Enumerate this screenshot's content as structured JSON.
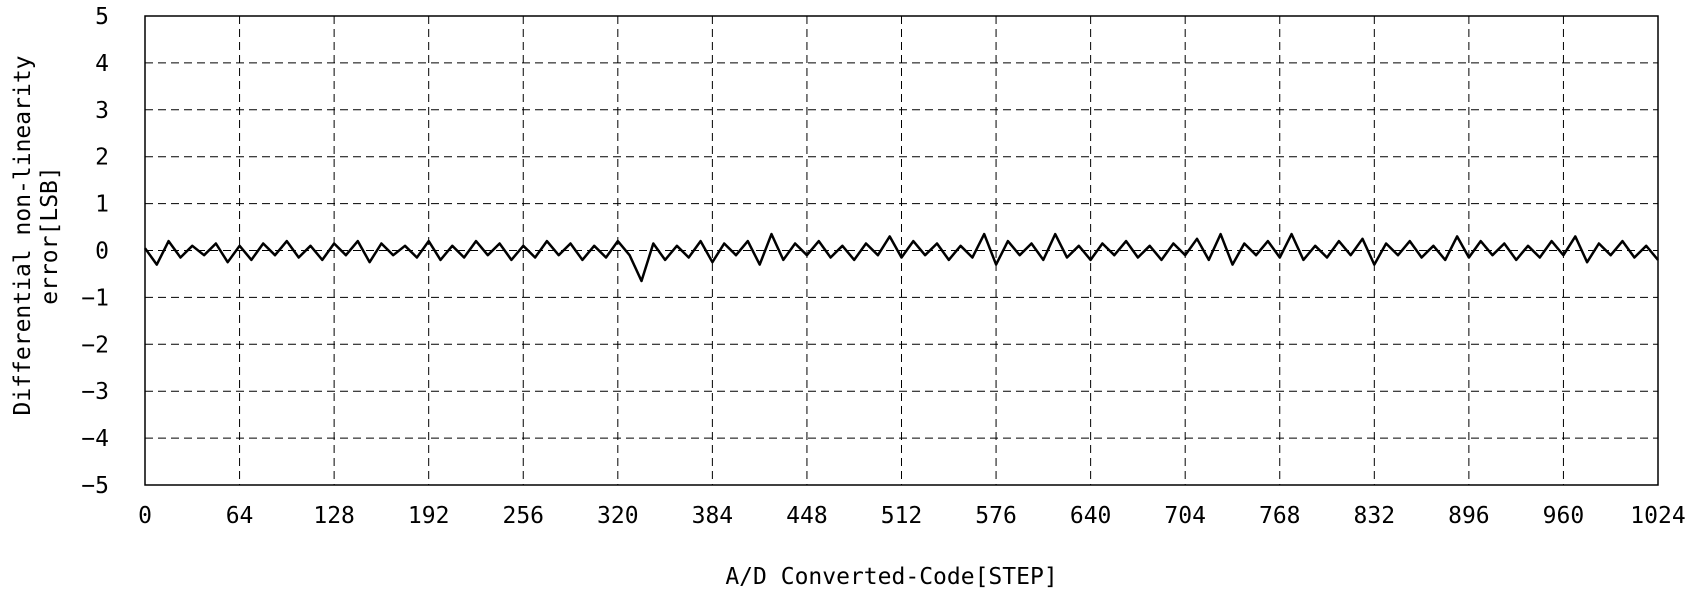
{
  "chart_data": {
    "type": "line",
    "title": "",
    "xlabel": "A/D Converted-Code[STEP]",
    "ylabel_lines": [
      "Differential non-linearity",
      "error[LSB]"
    ],
    "xlim": [
      0,
      1024
    ],
    "ylim": [
      -5,
      5
    ],
    "x_ticks": [
      0,
      64,
      128,
      192,
      256,
      320,
      384,
      448,
      512,
      576,
      640,
      704,
      768,
      832,
      896,
      960,
      1024
    ],
    "y_ticks": [
      5,
      4,
      3,
      2,
      1,
      0,
      -1,
      -2,
      -3,
      -4,
      -5
    ],
    "y_tick_labels": [
      "5",
      "4",
      "3",
      "2",
      "1",
      "0",
      "−1",
      "−2",
      "−3",
      "−4",
      "−5"
    ],
    "grid": true,
    "series": [
      {
        "color": "#000000",
        "x": [
          0,
          8,
          16,
          24,
          32,
          40,
          48,
          56,
          64,
          72,
          80,
          88,
          96,
          104,
          112,
          120,
          128,
          136,
          144,
          152,
          160,
          168,
          176,
          184,
          192,
          200,
          208,
          216,
          224,
          232,
          240,
          248,
          256,
          264,
          272,
          280,
          288,
          296,
          304,
          312,
          320,
          328,
          336,
          344,
          352,
          360,
          368,
          376,
          384,
          392,
          400,
          408,
          416,
          424,
          432,
          440,
          448,
          456,
          464,
          472,
          480,
          488,
          496,
          504,
          512,
          520,
          528,
          536,
          544,
          552,
          560,
          568,
          576,
          584,
          592,
          600,
          608,
          616,
          624,
          632,
          640,
          648,
          656,
          664,
          672,
          680,
          688,
          696,
          704,
          712,
          720,
          728,
          736,
          744,
          752,
          760,
          768,
          776,
          784,
          792,
          800,
          808,
          816,
          824,
          832,
          840,
          848,
          856,
          864,
          872,
          880,
          888,
          896,
          904,
          912,
          920,
          928,
          936,
          944,
          952,
          960,
          968,
          976,
          984,
          992,
          1000,
          1008,
          1016,
          1024
        ],
        "values": [
          0.05,
          -0.3,
          0.2,
          -0.15,
          0.1,
          -0.1,
          0.15,
          -0.25,
          0.1,
          -0.2,
          0.15,
          -0.1,
          0.2,
          -0.15,
          0.1,
          -0.2,
          0.15,
          -0.1,
          0.2,
          -0.25,
          0.15,
          -0.1,
          0.1,
          -0.15,
          0.2,
          -0.2,
          0.1,
          -0.15,
          0.2,
          -0.1,
          0.15,
          -0.2,
          0.1,
          -0.15,
          0.2,
          -0.1,
          0.15,
          -0.2,
          0.1,
          -0.15,
          0.2,
          -0.1,
          -0.65,
          0.15,
          -0.2,
          0.1,
          -0.15,
          0.2,
          -0.25,
          0.15,
          -0.1,
          0.2,
          -0.3,
          0.35,
          -0.2,
          0.15,
          -0.1,
          0.2,
          -0.15,
          0.1,
          -0.2,
          0.15,
          -0.1,
          0.3,
          -0.15,
          0.2,
          -0.1,
          0.15,
          -0.2,
          0.1,
          -0.15,
          0.35,
          -0.3,
          0.2,
          -0.1,
          0.15,
          -0.2,
          0.35,
          -0.15,
          0.1,
          -0.2,
          0.15,
          -0.1,
          0.2,
          -0.15,
          0.1,
          -0.2,
          0.15,
          -0.1,
          0.25,
          -0.2,
          0.35,
          -0.3,
          0.15,
          -0.1,
          0.2,
          -0.15,
          0.35,
          -0.2,
          0.1,
          -0.15,
          0.2,
          -0.1,
          0.25,
          -0.3,
          0.15,
          -0.1,
          0.2,
          -0.15,
          0.1,
          -0.2,
          0.3,
          -0.15,
          0.2,
          -0.1,
          0.15,
          -0.2,
          0.1,
          -0.15,
          0.2,
          -0.1,
          0.3,
          -0.25,
          0.15,
          -0.1,
          0.2,
          -0.15,
          0.1,
          -0.2
        ]
      }
    ]
  }
}
